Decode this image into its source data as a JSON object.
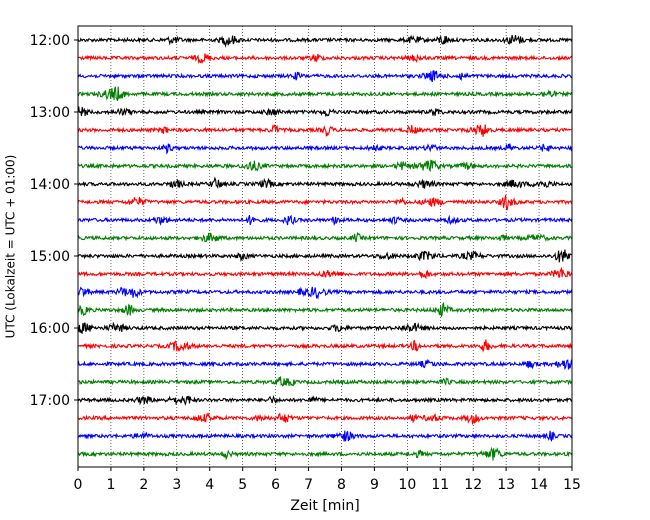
{
  "chart_data": {
    "type": "line",
    "title": "",
    "xlabel": "Zeit  [min]",
    "ylabel": "UTC (Lokalzeit = UTC + 01:00)",
    "xlim": [
      0,
      15
    ],
    "x_ticks": [
      0,
      1,
      2,
      3,
      4,
      5,
      6,
      7,
      8,
      9,
      10,
      11,
      12,
      13,
      14,
      15
    ],
    "x_tick_labels": [
      "0",
      "1",
      "2",
      "3",
      "4",
      "5",
      "6",
      "7",
      "8",
      "9",
      "10",
      "11",
      "12",
      "13",
      "14",
      "15"
    ],
    "y_ticks": [
      "12:00",
      "13:00",
      "14:00",
      "15:00",
      "16:00",
      "17:00"
    ],
    "grid": "vertical dotted",
    "trace_minutes": 15,
    "trace_colors": [
      "#000000",
      "#ff0000",
      "#0000ff",
      "#007f00"
    ],
    "traces": [
      {
        "start": "12:00",
        "color": "#000000"
      },
      {
        "start": "12:15",
        "color": "#ff0000"
      },
      {
        "start": "12:30",
        "color": "#0000ff"
      },
      {
        "start": "12:45",
        "color": "#007f00"
      },
      {
        "start": "13:00",
        "color": "#000000"
      },
      {
        "start": "13:15",
        "color": "#ff0000"
      },
      {
        "start": "13:30",
        "color": "#0000ff"
      },
      {
        "start": "13:45",
        "color": "#007f00"
      },
      {
        "start": "14:00",
        "color": "#000000"
      },
      {
        "start": "14:15",
        "color": "#ff0000"
      },
      {
        "start": "14:30",
        "color": "#0000ff"
      },
      {
        "start": "14:45",
        "color": "#007f00"
      },
      {
        "start": "15:00",
        "color": "#000000"
      },
      {
        "start": "15:15",
        "color": "#ff0000"
      },
      {
        "start": "15:30",
        "color": "#0000ff"
      },
      {
        "start": "15:45",
        "color": "#007f00"
      },
      {
        "start": "16:00",
        "color": "#000000"
      },
      {
        "start": "16:15",
        "color": "#ff0000"
      },
      {
        "start": "16:30",
        "color": "#0000ff"
      },
      {
        "start": "16:45",
        "color": "#007f00"
      },
      {
        "start": "17:00",
        "color": "#000000"
      },
      {
        "start": "17:15",
        "color": "#ff0000"
      },
      {
        "start": "17:30",
        "color": "#0000ff"
      },
      {
        "start": "17:45",
        "color": "#007f00"
      }
    ]
  }
}
